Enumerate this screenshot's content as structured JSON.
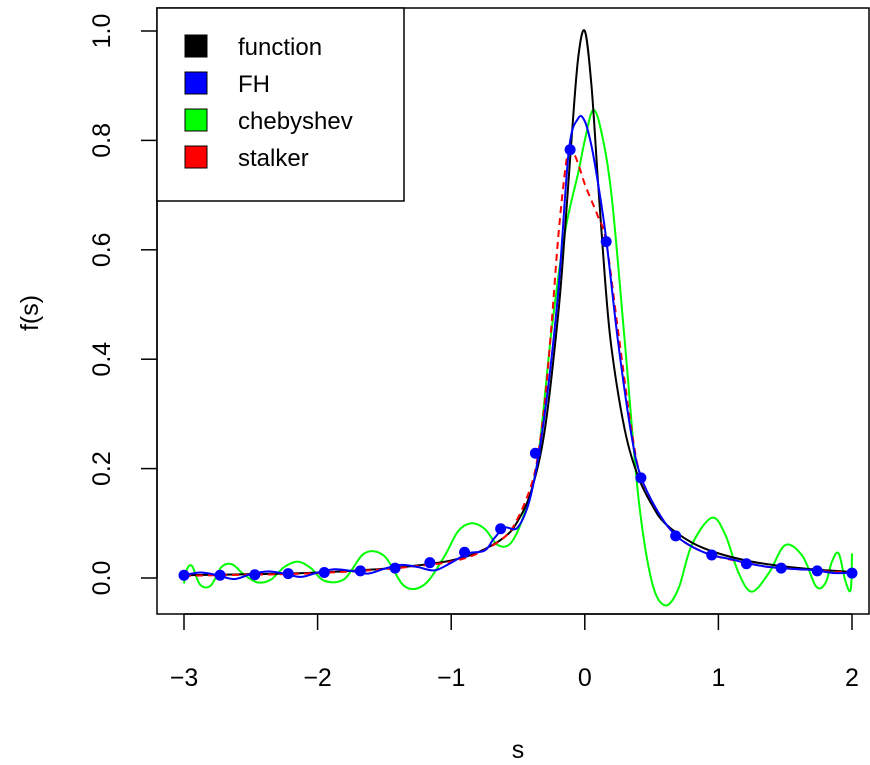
{
  "chart_data": {
    "type": "line",
    "title": "",
    "xlabel": "s",
    "ylabel": "f(s)",
    "xlim": [
      -3.0,
      2.0
    ],
    "ylim": [
      0.0,
      1.0
    ],
    "x_ticks": [
      -3,
      -2,
      -1,
      0,
      1,
      2
    ],
    "x_tick_labels": [
      "−3",
      "−2",
      "−1",
      "0",
      "1",
      "2"
    ],
    "y_ticks": [
      0.0,
      0.2,
      0.4,
      0.6,
      0.8,
      1.0
    ],
    "y_tick_labels": [
      "0.0",
      "0.2",
      "0.4",
      "0.6",
      "0.8",
      "1.0"
    ],
    "grid": false,
    "legend_position": "top-left",
    "series": [
      {
        "name": "function",
        "color": "#000000",
        "style": "solid",
        "x": [
          -3.0,
          -2.75,
          -2.5,
          -2.25,
          -2.0,
          -1.75,
          -1.5,
          -1.25,
          -1.0,
          -0.8,
          -0.6,
          -0.5,
          -0.4,
          -0.3,
          -0.2,
          -0.15,
          -0.1,
          -0.05,
          0.0,
          0.05,
          0.1,
          0.15,
          0.2,
          0.3,
          0.4,
          0.5,
          0.6,
          0.8,
          1.0,
          1.25,
          1.5,
          1.75,
          2.0
        ],
        "y": [
          0.005,
          0.006,
          0.007,
          0.008,
          0.01,
          0.013,
          0.017,
          0.023,
          0.032,
          0.047,
          0.075,
          0.105,
          0.16,
          0.27,
          0.48,
          0.63,
          0.8,
          0.95,
          1.0,
          0.9,
          0.72,
          0.55,
          0.42,
          0.27,
          0.185,
          0.135,
          0.1,
          0.065,
          0.045,
          0.03,
          0.021,
          0.015,
          0.011
        ]
      },
      {
        "name": "FH",
        "color": "#0000ff",
        "style": "solid",
        "x": [
          -3.0,
          -2.875,
          -2.75,
          -2.625,
          -2.5,
          -2.375,
          -2.25,
          -2.125,
          -2.0,
          -1.875,
          -1.75,
          -1.625,
          -1.5,
          -1.375,
          -1.25,
          -1.125,
          -1.0,
          -0.875,
          -0.75,
          -0.68,
          -0.6,
          -0.5,
          -0.4,
          -0.3,
          -0.2,
          -0.12,
          -0.05,
          0.0,
          0.05,
          0.1,
          0.16,
          0.25,
          0.35,
          0.42,
          0.55,
          0.68,
          0.82,
          0.95,
          1.1,
          1.22,
          1.35,
          1.47,
          1.6,
          1.73,
          1.87,
          2.0
        ],
        "y": [
          0.005,
          0.01,
          0.005,
          -0.002,
          0.007,
          0.012,
          0.008,
          0.002,
          0.01,
          0.016,
          0.013,
          0.008,
          0.017,
          0.024,
          0.02,
          0.014,
          0.028,
          0.045,
          0.05,
          0.072,
          0.092,
          0.093,
          0.155,
          0.3,
          0.52,
          0.78,
          0.84,
          0.835,
          0.79,
          0.72,
          0.62,
          0.43,
          0.26,
          0.185,
          0.12,
          0.078,
          0.055,
          0.042,
          0.034,
          0.027,
          0.021,
          0.018,
          0.016,
          0.014,
          0.009,
          0.01
        ]
      },
      {
        "name": "chebyshev",
        "color": "#00ff00",
        "style": "solid",
        "x": [
          -3.0,
          -2.98,
          -2.94,
          -2.88,
          -2.8,
          -2.72,
          -2.64,
          -2.55,
          -2.45,
          -2.35,
          -2.25,
          -2.15,
          -2.05,
          -1.95,
          -1.8,
          -1.65,
          -1.5,
          -1.35,
          -1.2,
          -1.05,
          -0.95,
          -0.85,
          -0.75,
          -0.65,
          -0.55,
          -0.45,
          -0.35,
          -0.25,
          -0.15,
          -0.05,
          0.0,
          0.06,
          0.12,
          0.2,
          0.3,
          0.4,
          0.5,
          0.6,
          0.7,
          0.8,
          0.95,
          1.05,
          1.15,
          1.25,
          1.38,
          1.5,
          1.63,
          1.73,
          1.8,
          1.85,
          1.9,
          1.95,
          1.99,
          2.0
        ],
        "y": [
          -0.01,
          0.015,
          0.022,
          -0.012,
          -0.014,
          0.02,
          0.025,
          0.006,
          -0.008,
          -0.003,
          0.02,
          0.03,
          0.018,
          -0.005,
          -0.002,
          0.045,
          0.04,
          -0.015,
          -0.012,
          0.04,
          0.085,
          0.1,
          0.09,
          0.06,
          0.065,
          0.12,
          0.22,
          0.45,
          0.63,
          0.74,
          0.8,
          0.855,
          0.82,
          0.7,
          0.43,
          0.15,
          -0.005,
          -0.05,
          -0.02,
          0.06,
          0.11,
          0.08,
          0.01,
          -0.025,
          0.01,
          0.06,
          0.04,
          -0.015,
          -0.01,
          0.03,
          0.045,
          -0.005,
          -0.022,
          0.045
        ]
      },
      {
        "name": "stalker",
        "color": "#ff0000",
        "style": "dashed",
        "x": [
          -3.0,
          -2.75,
          -2.5,
          -2.25,
          -2.0,
          -1.75,
          -1.5,
          -1.25,
          -1.0,
          -0.8,
          -0.6,
          -0.5,
          -0.4,
          -0.35,
          -0.3,
          -0.25,
          -0.2,
          -0.15,
          -0.12,
          -0.08,
          -0.04,
          0.0,
          0.05,
          0.1,
          0.16,
          0.25,
          0.35,
          0.42,
          0.55,
          0.68,
          0.82,
          0.95,
          1.1,
          1.22,
          1.35,
          1.47,
          1.6,
          1.73,
          1.87,
          2.0
        ],
        "y": [
          0.004,
          0.005,
          0.006,
          0.007,
          0.009,
          0.012,
          0.016,
          0.022,
          0.03,
          0.045,
          0.075,
          0.11,
          0.17,
          0.225,
          0.32,
          0.46,
          0.62,
          0.74,
          0.78,
          0.775,
          0.75,
          0.72,
          0.69,
          0.66,
          0.615,
          0.45,
          0.27,
          0.185,
          0.12,
          0.078,
          0.055,
          0.042,
          0.033,
          0.027,
          0.021,
          0.018,
          0.016,
          0.014,
          0.011,
          0.01
        ]
      }
    ],
    "points": {
      "series": "FH",
      "color": "#0000ff",
      "x": [
        -3.0,
        -2.73,
        -2.47,
        -2.22,
        -1.95,
        -1.68,
        -1.42,
        -1.16,
        -0.9,
        -0.63,
        -0.37,
        -0.11,
        0.16,
        0.42,
        0.68,
        0.95,
        1.21,
        1.47,
        1.74,
        2.0
      ],
      "y": [
        0.005,
        0.005,
        0.006,
        0.008,
        0.01,
        0.013,
        0.018,
        0.028,
        0.047,
        0.09,
        0.228,
        0.783,
        0.615,
        0.183,
        0.077,
        0.042,
        0.026,
        0.018,
        0.013,
        0.009
      ]
    }
  }
}
